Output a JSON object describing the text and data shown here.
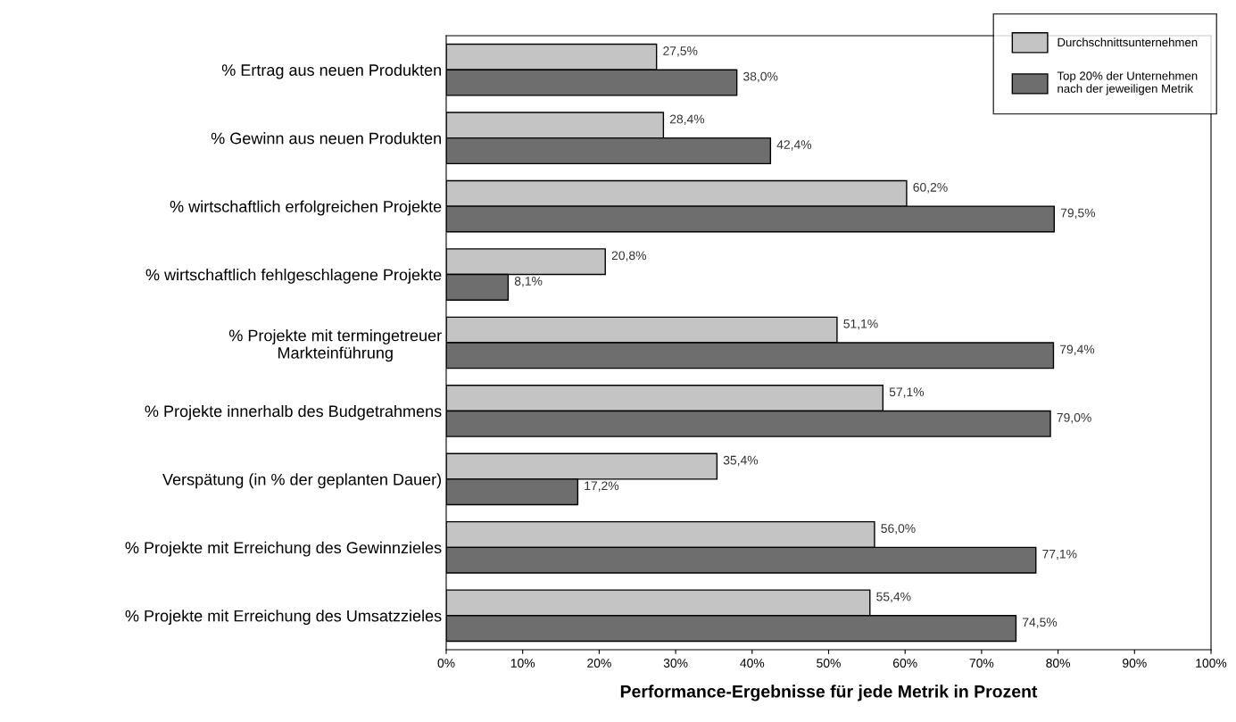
{
  "chart_data": {
    "type": "bar",
    "orientation": "horizontal",
    "xlabel": "Performance-Ergebnisse für jede Metrik in Prozent",
    "categories": [
      "% Ertrag aus neuen Produkten",
      "% Gewinn aus neuen Produkten",
      "% wirtschaftlich erfolgreichen Projekte",
      "% wirtschaftlich fehlgeschlagene Projekte",
      "% Projekte mit termingetreuer\nMarkteinführung",
      "% Projekte innerhalb des Budgetrahmens",
      "Verspätung (in % der geplanten Dauer)",
      "% Projekte mit Erreichung des Gewinnzieles",
      "% Projekte mit Erreichung des Umsatzzieles"
    ],
    "series": [
      {
        "name": "Durchschnittsunternehmen",
        "color": "#c4c4c4",
        "values": [
          27.5,
          28.4,
          60.2,
          20.8,
          51.1,
          57.1,
          35.4,
          56.0,
          55.4
        ],
        "value_labels": [
          "27,5%",
          "28,4%",
          "60,2%",
          "20,8%",
          "51,1%",
          "57,1%",
          "35,4%",
          "56,0%",
          "55,4%"
        ]
      },
      {
        "name": "Top 20% der Unternehmen\nnach der jeweiligen Metrik",
        "color": "#6e6e6e",
        "values": [
          38.0,
          42.4,
          79.5,
          8.1,
          79.4,
          79.0,
          17.2,
          77.1,
          74.5
        ],
        "value_labels": [
          "38,0%",
          "42,4%",
          "79,5%",
          "8,1%",
          "79,4%",
          "79,0%",
          "17,2%",
          "77,1%",
          "74,5%"
        ]
      }
    ],
    "xlim": [
      0,
      100
    ],
    "xticks": [
      {
        "value": 0,
        "label": "0%"
      },
      {
        "value": 10,
        "label": "10%"
      },
      {
        "value": 20,
        "label": "20%"
      },
      {
        "value": 30,
        "label": "30%"
      },
      {
        "value": 40,
        "label": "40%"
      },
      {
        "value": 50,
        "label": "50%"
      },
      {
        "value": 60,
        "label": "60%"
      },
      {
        "value": 70,
        "label": "70%"
      },
      {
        "value": 80,
        "label": "80%"
      },
      {
        "value": 90,
        "label": "90%"
      },
      {
        "value": 100,
        "label": "100%"
      }
    ],
    "legend": "top right",
    "grid": false
  }
}
